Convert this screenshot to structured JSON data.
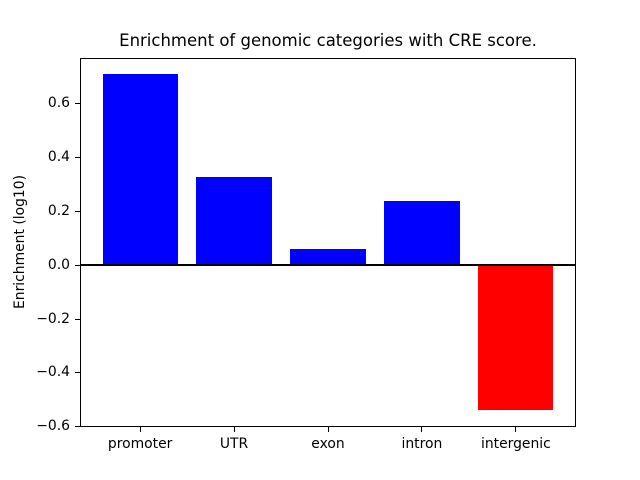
{
  "chart_data": {
    "type": "bar",
    "title": "Enrichment of genomic categories with CRE score.",
    "xlabel": "",
    "ylabel": "Enrichment (log10)",
    "categories": [
      "promoter",
      "UTR",
      "exon",
      "intron",
      "intergenic"
    ],
    "values": [
      0.71,
      0.33,
      0.06,
      0.24,
      -0.54
    ],
    "bar_width_data_units": 0.8,
    "xlim": [
      -0.64,
      4.64
    ],
    "ylim": [
      -0.6025,
      0.7725
    ],
    "yticks": [
      0.6,
      0.4,
      0.2,
      0.0,
      -0.2,
      -0.4,
      -0.6
    ],
    "ytick_labels": [
      "0.6",
      "0.4",
      "0.2",
      "0.0",
      "−0.2",
      "−0.4",
      "−0.6"
    ],
    "grid": false,
    "legend": "none",
    "zero_line": true,
    "colors": {
      "positive_bar": "#0000ff",
      "negative_bar": "#ff0000",
      "axis": "#000000",
      "text": "#000000",
      "background": "#ffffff"
    }
  }
}
